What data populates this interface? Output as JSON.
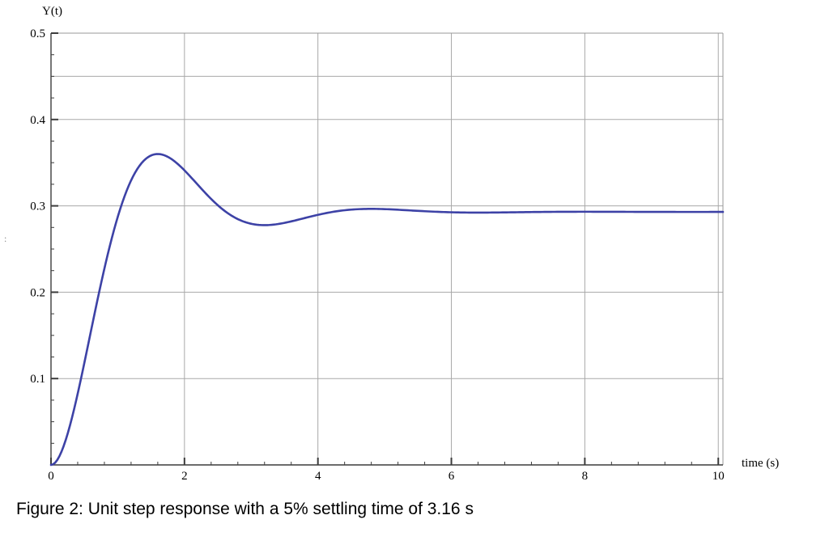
{
  "figure": {
    "caption": "Figure 2: Unit step response with a 5% settling time of 3.16 s"
  },
  "artifacts": {
    "stray_mark": ":"
  },
  "chart_data": {
    "type": "line",
    "title": "",
    "xlabel": "time (s)",
    "ylabel": "Y(t)",
    "xlim": [
      0,
      10.07
    ],
    "ylim": [
      0,
      0.5
    ],
    "x_ticks": [
      0,
      2,
      4,
      6,
      8,
      10
    ],
    "x_tick_labels": [
      "0",
      "2",
      "4",
      "6",
      "8",
      "10"
    ],
    "x_minor_step": 0.4,
    "y_ticks": [
      0.1,
      0.2,
      0.3,
      0.4,
      0.5
    ],
    "y_tick_labels": [
      "0.1",
      "0.2",
      "0.3",
      "0.4",
      "0.5"
    ],
    "y_minor_step": 0.025,
    "grid_x": [
      2,
      4,
      6,
      8,
      10
    ],
    "grid_y": [
      0.1,
      0.2,
      0.3,
      0.4,
      0.45,
      0.5
    ],
    "grid_on": true,
    "legend": "none",
    "line_color": "#3d42a6",
    "grid_color": "#a8a8a8",
    "axis_color": "#3c3c3c",
    "frame_color": "#979797",
    "series": [
      {
        "name": "unit step response",
        "model": {
          "type": "second_order_step",
          "steady_state": 0.293,
          "zeta": 0.425,
          "omega_n": 2.17,
          "t_range": [
            0,
            10.07
          ],
          "samples": 320
        },
        "points": {
          "t": [
            0,
            0.2,
            0.4,
            0.6,
            0.8,
            1.0,
            1.2,
            1.4,
            1.6,
            1.8,
            2.0,
            2.2,
            2.4,
            2.6,
            2.8,
            3.0,
            3.2,
            3.4,
            3.6,
            3.8,
            4.0,
            4.2,
            4.4,
            4.6,
            4.8,
            5.0,
            5.5,
            6.0,
            6.5,
            7.0,
            7.5,
            8.0,
            8.5,
            9.0,
            9.5,
            10.0
          ],
          "y": [
            0,
            0.024,
            0.083,
            0.155,
            0.227,
            0.287,
            0.33,
            0.353,
            0.36,
            0.355,
            0.341,
            0.324,
            0.308,
            0.294,
            0.285,
            0.279,
            0.278,
            0.279,
            0.282,
            0.286,
            0.29,
            0.293,
            0.295,
            0.296,
            0.297,
            0.296,
            0.294,
            0.293,
            0.292,
            0.293,
            0.293,
            0.293,
            0.293,
            0.293,
            0.293,
            0.293
          ]
        },
        "key_points": {
          "peak": {
            "t": 1.6,
            "y": 0.36
          },
          "first_minimum": {
            "t": 3.2,
            "y": 0.278
          },
          "final_value": 0.293,
          "settling_time_5pct_s": 3.16
        }
      }
    ]
  }
}
